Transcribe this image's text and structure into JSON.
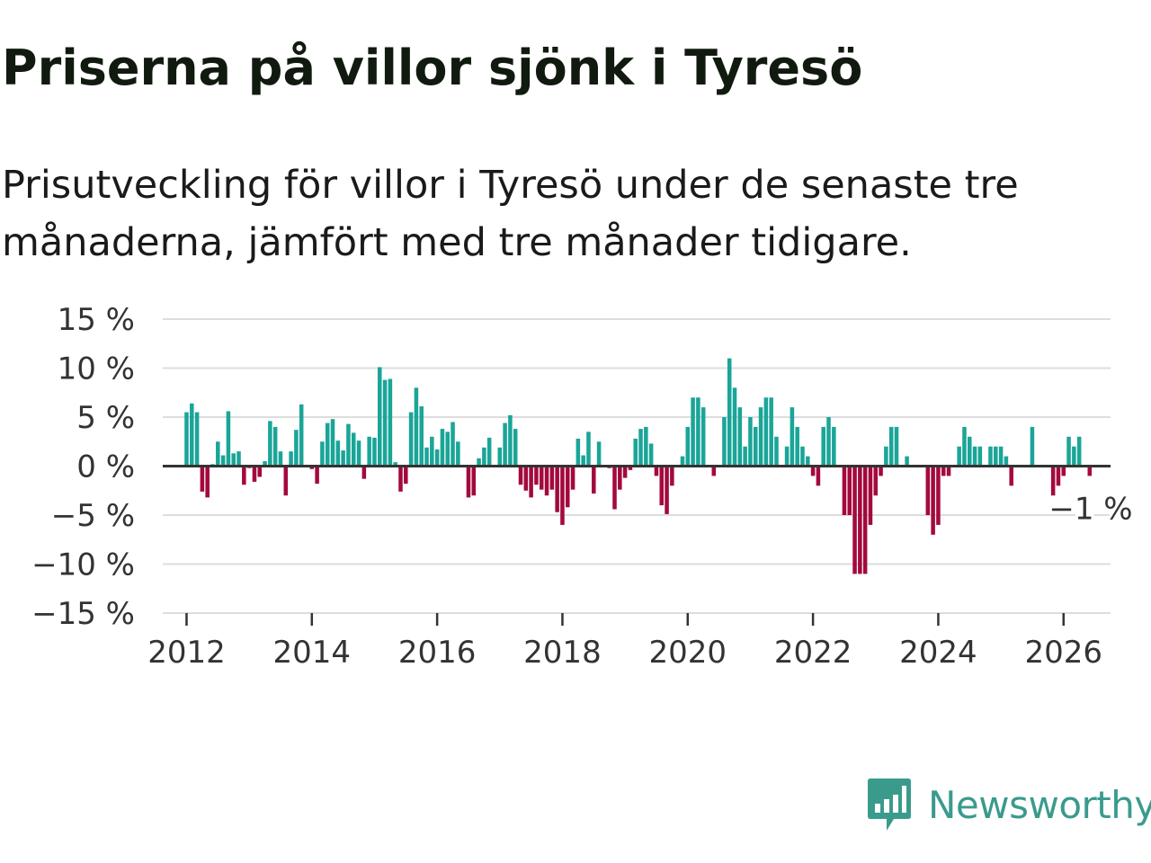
{
  "title": "Priserna på villor sjönk i Tyresö",
  "subtitle": "Prisutveckling för villor i Tyresö under de senaste tre månaderna, jämfört med tre månader tidigare.",
  "brand": {
    "name": "Newsworthy",
    "color": "#3a9b8d",
    "icon": "newsworthy-chart-bubble-icon"
  },
  "colors": {
    "positive": "#1aa598",
    "negative": "#a3093e",
    "grid": "#dddddd",
    "zero": "#333333"
  },
  "chart_data": {
    "type": "bar",
    "title": "Priserna på villor sjönk i Tyresö",
    "xlabel": "",
    "ylabel": "",
    "ylim": [
      -15,
      15
    ],
    "xlim": [
      2011.62,
      2026.75
    ],
    "yticks": [
      15,
      10,
      5,
      0,
      -5,
      -10,
      -15
    ],
    "ytick_labels": [
      "15 %",
      "10 %",
      "5 %",
      "0 %",
      "−5 %",
      "−10 %",
      "−15 %"
    ],
    "xticks": [
      2012,
      2014,
      2016,
      2018,
      2020,
      2022,
      2024,
      2026
    ],
    "xtick_labels": [
      "2012",
      "2014",
      "2016",
      "2018",
      "2020",
      "2022",
      "2024",
      "2026"
    ],
    "grid": true,
    "annotation": {
      "label": "−1 %",
      "x": 2025.917,
      "value": -1
    },
    "series": [
      {
        "name": "Prisutveckling",
        "start": {
          "year": 2012,
          "month": 1
        },
        "values": [
          5.5,
          6.4,
          5.5,
          -2.6,
          -3.2,
          0.2,
          2.5,
          1.1,
          5.6,
          1.3,
          1.5,
          -1.9,
          -0.2,
          -1.6,
          -1.1,
          0.5,
          4.6,
          4.0,
          1.5,
          -3.0,
          1.5,
          3.7,
          6.3,
          0,
          -0.3,
          -1.8,
          2.5,
          4.4,
          4.8,
          2.6,
          1.6,
          4.3,
          3.4,
          2.6,
          -1.3,
          3.0,
          2.9,
          10.1,
          8.8,
          8.9,
          0.4,
          -2.6,
          -1.8,
          5.5,
          8.0,
          6.1,
          1.9,
          3.0,
          1.7,
          3.8,
          3.5,
          4.5,
          2.5,
          0,
          -3.2,
          -3.0,
          0.8,
          1.9,
          2.9,
          0,
          1.9,
          4.4,
          5.2,
          3.8,
          -1.9,
          -2.5,
          -3.2,
          -1.9,
          -2.4,
          -3.0,
          -2.4,
          -4.7,
          -6.0,
          -4.2,
          -2.4,
          2.8,
          1.1,
          3.5,
          -2.8,
          2.5,
          0,
          -0.2,
          -4.4,
          -2.4,
          -1.2,
          -0.4,
          2.8,
          3.8,
          4.0,
          2.3,
          -1.0,
          -4.0,
          -4.9,
          -2.0,
          0,
          1.0,
          4.0,
          7.0,
          7.0,
          6.0,
          0,
          -1.0,
          0,
          5.0,
          11.0,
          8.0,
          6.0,
          2.0,
          5.0,
          4.0,
          6.0,
          7.0,
          7.0,
          3.0,
          0,
          2.0,
          6.0,
          4.0,
          2.0,
          1.0,
          -1.0,
          -2.0,
          4.0,
          5.0,
          4.0,
          0,
          -5.0,
          -5.0,
          -11.0,
          -11.0,
          -11.0,
          -6.0,
          -3.0,
          -1.0,
          2.0,
          4.0,
          4.0,
          0,
          1.0,
          0,
          0,
          0,
          -5.0,
          -7.0,
          -6.0,
          -1.0,
          -1.0,
          0,
          2.0,
          4.0,
          3.0,
          2.0,
          2.0,
          0,
          2.0,
          2.0,
          2.0,
          1.0,
          -2.0,
          0,
          0,
          0,
          4.0,
          0,
          0,
          0,
          -3.0,
          -2.0,
          -1.0,
          3.0,
          2.0,
          3.0,
          0,
          -1.0
        ]
      }
    ]
  }
}
